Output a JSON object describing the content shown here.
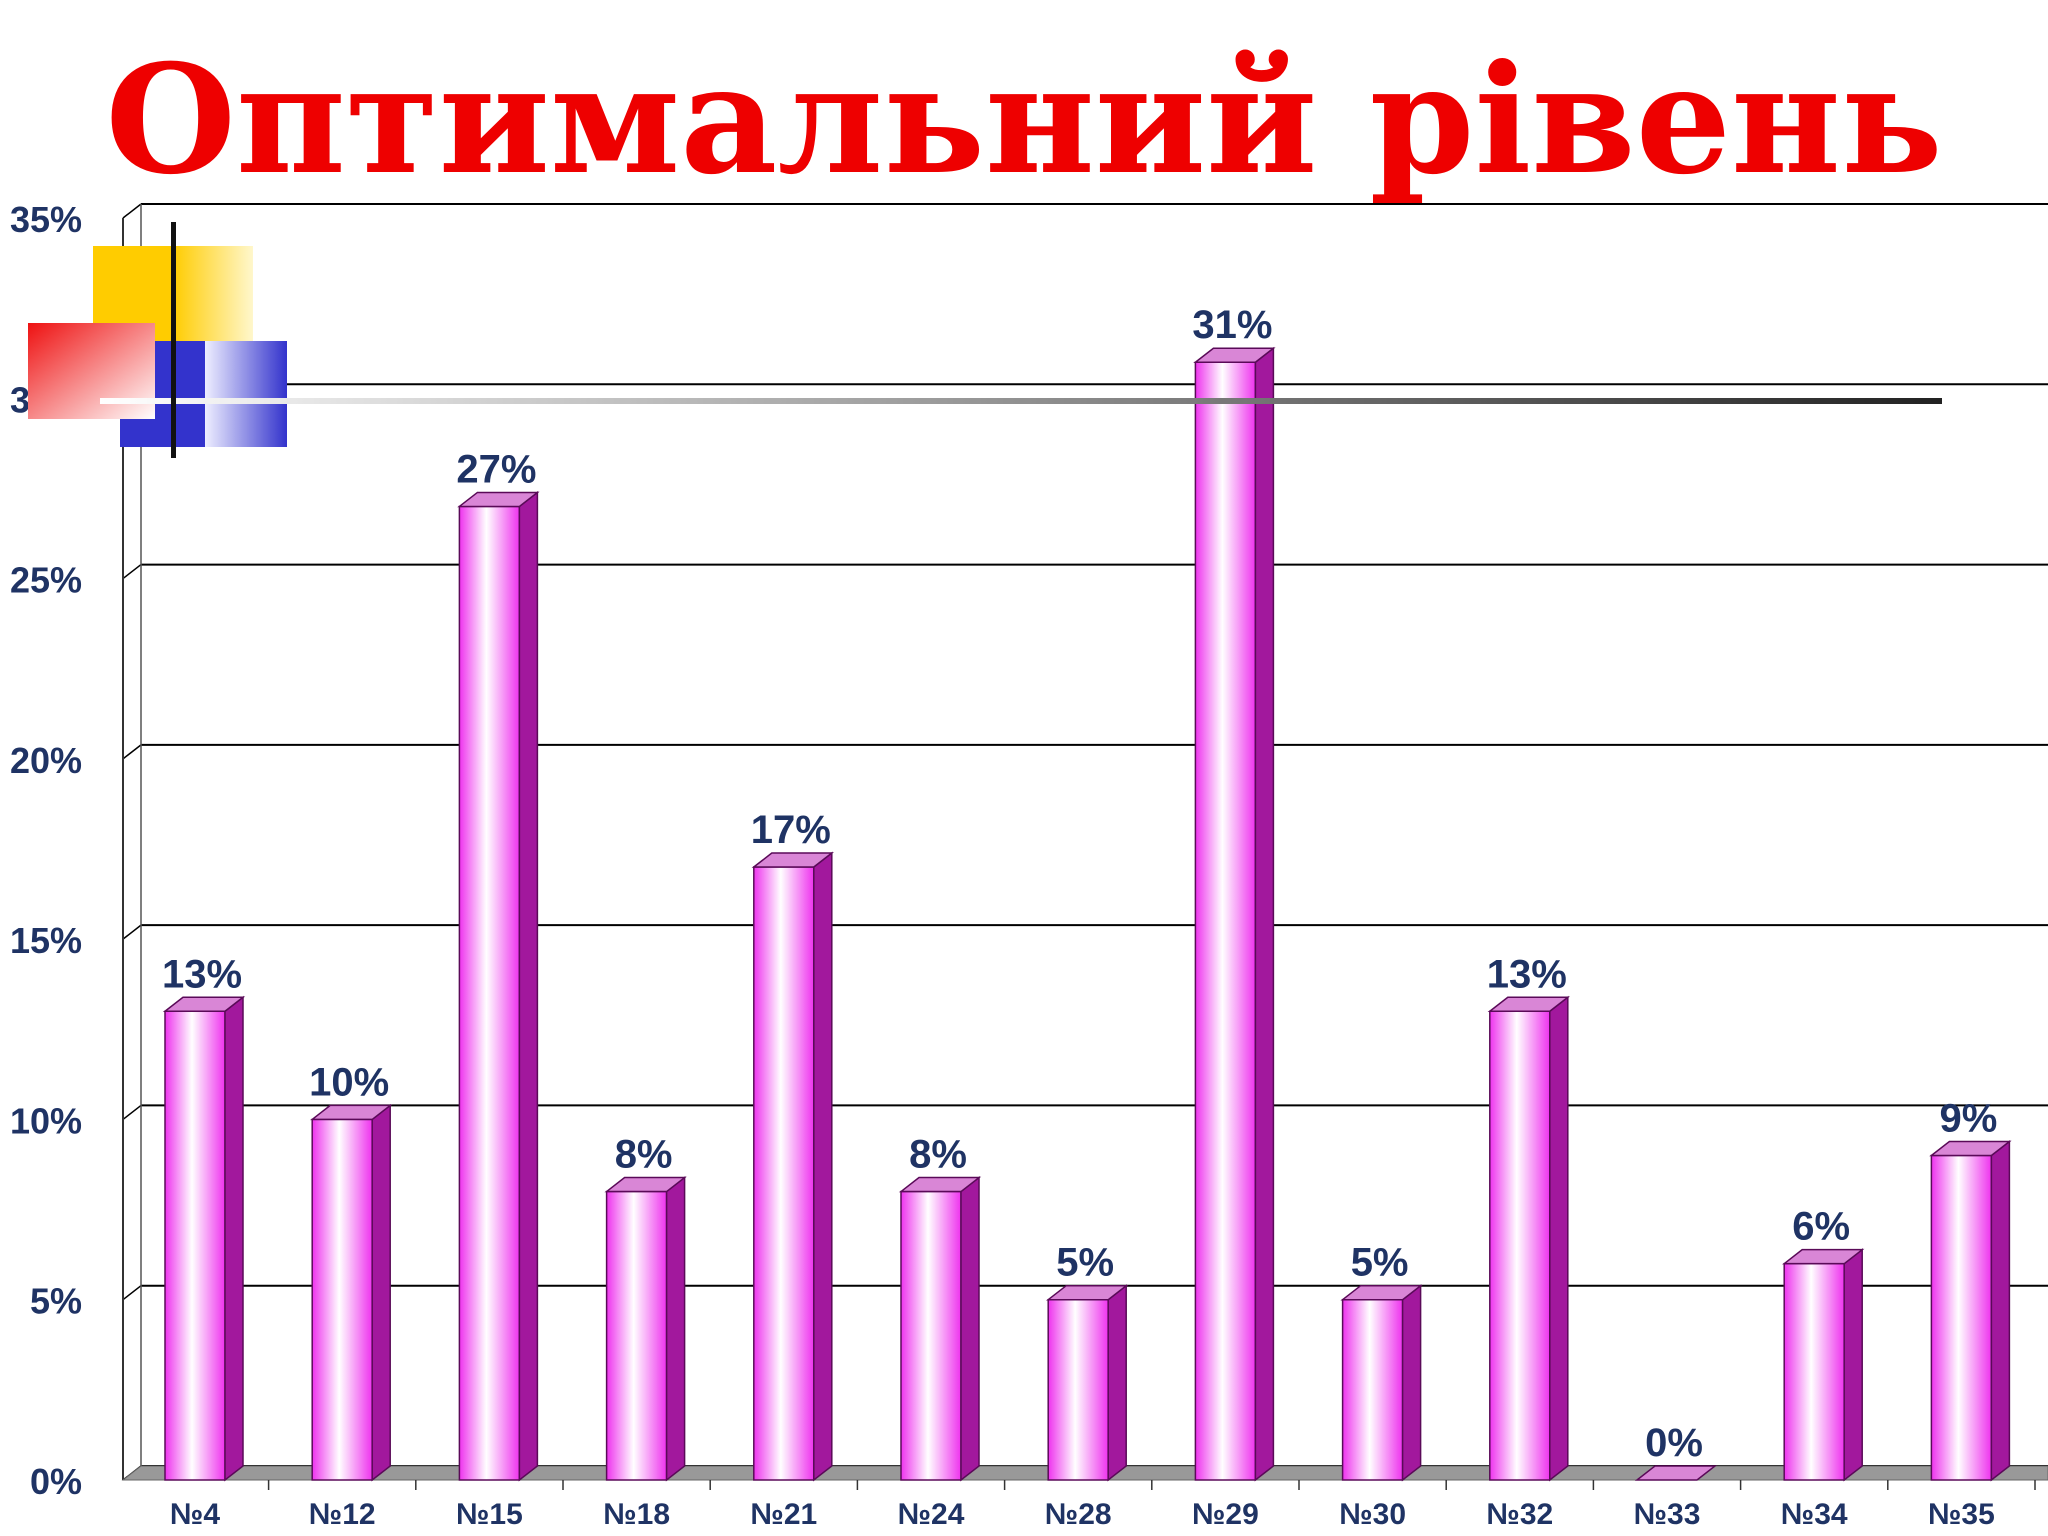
{
  "title": "Оптимальний  рівень",
  "colors": {
    "title": "#ee0000",
    "label": "#1f3364",
    "bar_front_light": "#ffffff",
    "bar_front_dark": "#ee33ee",
    "bar_side": "#a2189d",
    "bar_top": "#d986d6",
    "grid": "#000000",
    "floor": "#999999",
    "deco_yellow": "#ffcc00",
    "deco_red": "#ee1111",
    "deco_blue": "#3333cc"
  },
  "chart_data": {
    "type": "bar",
    "categories": [
      "№4",
      "№12",
      "№15",
      "№18",
      "№21",
      "№24",
      "№28",
      "№29",
      "№30",
      "№32",
      "№33",
      "№34",
      "№35"
    ],
    "values": [
      13,
      10,
      27,
      8,
      17,
      8,
      5,
      31,
      5,
      13,
      0,
      6,
      9
    ],
    "data_labels": [
      "13%",
      "10%",
      "27%",
      "8%",
      "17%",
      "8%",
      "5%",
      "31%",
      "5%",
      "13%",
      "0%",
      "6%",
      "9%"
    ],
    "ylim": [
      0,
      35
    ],
    "yticks": [
      0,
      5,
      10,
      15,
      20,
      25,
      30,
      35
    ],
    "ytick_labels": [
      "0%",
      "5%",
      "10%",
      "15%",
      "20%",
      "25%",
      "30%",
      "35%"
    ],
    "grid": true,
    "style": "3d-column"
  }
}
